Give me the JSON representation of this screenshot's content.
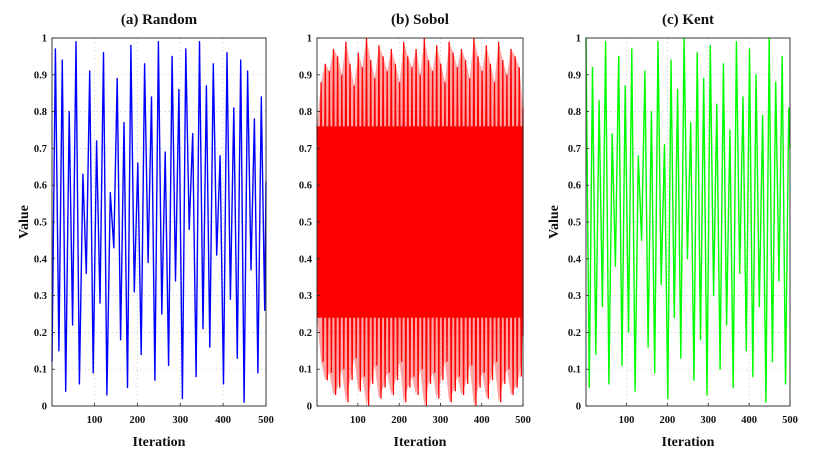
{
  "chart_data": [
    {
      "type": "line",
      "title": "(a) Random",
      "xlabel": "Iteration",
      "ylabel": "Value",
      "xlim": [
        1,
        500
      ],
      "ylim": [
        0,
        1
      ],
      "xticks": [
        100,
        200,
        300,
        400,
        500
      ],
      "yticks": [
        0,
        0.1,
        0.2,
        0.3,
        0.4,
        0.5,
        0.6,
        0.7,
        0.8,
        0.9,
        1
      ],
      "xtick_labels": [
        "100",
        "200",
        "300",
        "400",
        "500"
      ],
      "ytick_labels": [
        "0",
        "0.1",
        "0.2",
        "0.3",
        "0.4",
        "0.5",
        "0.6",
        "0.7",
        "0.8",
        "0.9",
        "1"
      ],
      "grid": true,
      "color": "#0000ff",
      "series": [
        {
          "name": "Random",
          "x": [
            1,
            9,
            17,
            25,
            33,
            41,
            49,
            57,
            65,
            73,
            81,
            89,
            97,
            105,
            113,
            121,
            129,
            137,
            145,
            153,
            161,
            169,
            177,
            185,
            193,
            201,
            209,
            217,
            225,
            233,
            241,
            249,
            257,
            265,
            273,
            281,
            289,
            297,
            305,
            313,
            321,
            329,
            337,
            345,
            353,
            361,
            369,
            377,
            385,
            393,
            401,
            409,
            417,
            425,
            433,
            441,
            449,
            457,
            465,
            473,
            481,
            489,
            497,
            500
          ],
          "values": [
            0.12,
            0.97,
            0.15,
            0.94,
            0.04,
            0.8,
            0.22,
            0.99,
            0.06,
            0.63,
            0.36,
            0.91,
            0.09,
            0.72,
            0.28,
            0.96,
            0.03,
            0.58,
            0.43,
            0.89,
            0.18,
            0.77,
            0.05,
            0.98,
            0.31,
            0.66,
            0.14,
            0.93,
            0.39,
            0.84,
            0.07,
            0.99,
            0.25,
            0.69,
            0.11,
            0.95,
            0.34,
            0.86,
            0.02,
            0.97,
            0.48,
            0.74,
            0.08,
            0.99,
            0.21,
            0.87,
            0.16,
            0.93,
            0.41,
            0.68,
            0.06,
            0.96,
            0.29,
            0.81,
            0.13,
            0.94,
            0.01,
            0.91,
            0.37,
            0.78,
            0.09,
            0.84,
            0.26,
            0.61
          ]
        }
      ]
    },
    {
      "type": "line",
      "title": "(b) Sobol",
      "xlabel": "Iteration",
      "ylabel": "",
      "xlim": [
        1,
        500
      ],
      "ylim": [
        0,
        1
      ],
      "xticks": [
        100,
        200,
        300,
        400,
        500
      ],
      "yticks": [
        0,
        0.1,
        0.2,
        0.3,
        0.4,
        0.5,
        0.6,
        0.7,
        0.8,
        0.9,
        1
      ],
      "xtick_labels": [
        "100",
        "200",
        "300",
        "400",
        "500"
      ],
      "ytick_labels": [
        "0",
        "0.1",
        "0.2",
        "0.3",
        "0.4",
        "0.5",
        "0.6",
        "0.7",
        "0.8",
        "0.9",
        "1"
      ],
      "grid": true,
      "color": "#ff0000",
      "series": [
        {
          "name": "Sobol",
          "x": [
            1,
            11,
            21,
            31,
            41,
            51,
            61,
            71,
            81,
            91,
            101,
            111,
            121,
            131,
            141,
            151,
            161,
            171,
            181,
            191,
            201,
            211,
            221,
            231,
            241,
            251,
            261,
            271,
            281,
            291,
            301,
            311,
            321,
            331,
            341,
            351,
            361,
            371,
            381,
            391,
            401,
            411,
            421,
            431,
            441,
            451,
            461,
            471,
            481,
            491,
            500
          ],
          "max": [
            0.76,
            0.88,
            0.93,
            0.91,
            0.97,
            0.95,
            0.9,
            0.99,
            0.93,
            0.87,
            0.96,
            0.92,
            1.0,
            0.94,
            0.89,
            0.98,
            0.95,
            0.91,
            0.97,
            0.93,
            0.88,
            0.99,
            0.95,
            0.92,
            0.97,
            0.9,
            1.0,
            0.94,
            0.91,
            0.98,
            0.93,
            0.88,
            0.99,
            0.96,
            0.92,
            0.97,
            0.94,
            0.89,
            1.0,
            0.95,
            0.91,
            0.98,
            0.93,
            0.88,
            0.99,
            0.94,
            0.9,
            0.97,
            0.95,
            0.92,
            0.81
          ],
          "min": [
            0.24,
            0.12,
            0.07,
            0.09,
            0.03,
            0.05,
            0.1,
            0.01,
            0.07,
            0.13,
            0.04,
            0.08,
            0.0,
            0.06,
            0.11,
            0.02,
            0.05,
            0.09,
            0.03,
            0.07,
            0.12,
            0.01,
            0.05,
            0.08,
            0.03,
            0.1,
            0.0,
            0.06,
            0.09,
            0.02,
            0.07,
            0.12,
            0.01,
            0.04,
            0.08,
            0.03,
            0.06,
            0.11,
            0.0,
            0.05,
            0.09,
            0.02,
            0.07,
            0.12,
            0.01,
            0.06,
            0.1,
            0.03,
            0.05,
            0.08,
            0.19
          ]
        }
      ]
    },
    {
      "type": "line",
      "title": "(c) Kent",
      "xlabel": "Iteration",
      "ylabel": "Value",
      "xlim": [
        1,
        500
      ],
      "ylim": [
        0,
        1
      ],
      "xticks": [
        100,
        200,
        300,
        400,
        500
      ],
      "yticks": [
        0,
        0.1,
        0.2,
        0.3,
        0.4,
        0.5,
        0.6,
        0.7,
        0.8,
        0.9,
        1
      ],
      "xtick_labels": [
        "100",
        "200",
        "300",
        "400",
        "500"
      ],
      "ytick_labels": [
        "0",
        "0.1",
        "0.2",
        "0.3",
        "0.4",
        "0.5",
        "0.6",
        "0.7",
        "0.8",
        "0.9",
        "1"
      ],
      "grid": true,
      "color": "#00ff00",
      "series": [
        {
          "name": "Kent",
          "x": [
            1,
            9,
            17,
            25,
            33,
            41,
            49,
            57,
            65,
            73,
            81,
            89,
            97,
            105,
            113,
            121,
            129,
            137,
            145,
            153,
            161,
            169,
            177,
            185,
            193,
            201,
            209,
            217,
            225,
            233,
            241,
            249,
            257,
            265,
            273,
            281,
            289,
            297,
            305,
            313,
            321,
            329,
            337,
            345,
            353,
            361,
            369,
            377,
            385,
            393,
            401,
            409,
            417,
            425,
            433,
            441,
            449,
            457,
            465,
            473,
            481,
            489,
            497,
            500
          ],
          "values": [
            1.0,
            0.05,
            0.92,
            0.14,
            0.83,
            0.27,
            0.99,
            0.06,
            0.74,
            0.38,
            0.95,
            0.11,
            0.87,
            0.2,
            0.97,
            0.04,
            0.68,
            0.45,
            0.91,
            0.16,
            0.8,
            0.09,
            0.99,
            0.33,
            0.71,
            0.02,
            0.94,
            0.24,
            0.86,
            0.13,
            1.0,
            0.4,
            0.77,
            0.07,
            0.96,
            0.18,
            0.89,
            0.03,
            0.98,
            0.3,
            0.82,
            0.1,
            0.93,
            0.22,
            0.75,
            0.05,
            0.99,
            0.36,
            0.84,
            0.15,
            0.97,
            0.08,
            0.9,
            0.27,
            0.79,
            0.01,
            1.0,
            0.12,
            0.88,
            0.34,
            0.95,
            0.06,
            0.81,
            0.7
          ]
        }
      ]
    }
  ]
}
